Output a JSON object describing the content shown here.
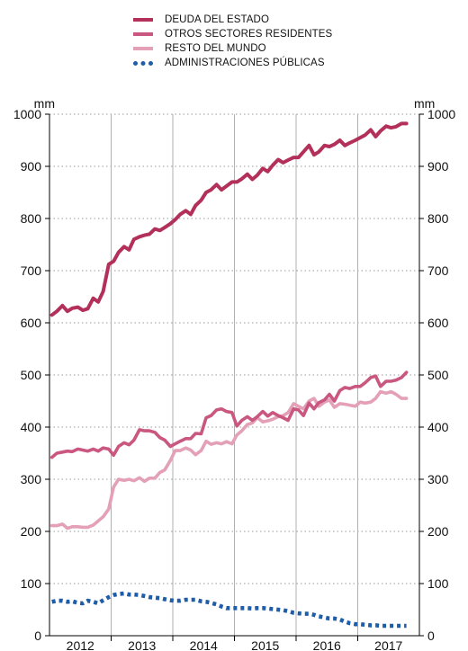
{
  "chart_data": {
    "type": "line",
    "title": "",
    "xlabel": "",
    "ylabel": "mm",
    "y2label": "mm",
    "ylim": [
      0,
      1000
    ],
    "yticks": [
      0,
      100,
      200,
      300,
      400,
      500,
      600,
      700,
      800,
      900,
      1000
    ],
    "x_range": [
      2011.58,
      2017.58
    ],
    "year_labels": [
      "2012",
      "2013",
      "2014",
      "2015",
      "2016",
      "2017"
    ],
    "year_label_positions": [
      2012.08,
      2013.08,
      2014.08,
      2015.08,
      2016.08,
      2017.08
    ],
    "year_boundaries": [
      2012.58,
      2013.58,
      2014.58,
      2015.58,
      2016.58
    ],
    "grid": "horizontal dotted, vertical year lines",
    "legend_position": "top",
    "x": [
      2011.62,
      2011.7,
      2011.79,
      2011.87,
      2011.95,
      2012.04,
      2012.12,
      2012.2,
      2012.29,
      2012.37,
      2012.45,
      2012.54,
      2012.62,
      2012.7,
      2012.79,
      2012.87,
      2012.95,
      2013.04,
      2013.12,
      2013.2,
      2013.29,
      2013.37,
      2013.45,
      2013.54,
      2013.62,
      2013.7,
      2013.79,
      2013.87,
      2013.95,
      2014.04,
      2014.12,
      2014.2,
      2014.29,
      2014.37,
      2014.45,
      2014.54,
      2014.62,
      2014.7,
      2014.79,
      2014.87,
      2014.95,
      2015.04,
      2015.12,
      2015.2,
      2015.29,
      2015.37,
      2015.45,
      2015.54,
      2015.62,
      2015.7,
      2015.79,
      2015.87,
      2015.95,
      2016.04,
      2016.12,
      2016.2,
      2016.29,
      2016.37,
      2016.45,
      2016.54,
      2016.62,
      2016.7,
      2016.79,
      2016.87,
      2016.95,
      2017.04,
      2017.12,
      2017.2,
      2017.29,
      2017.37
    ],
    "series": [
      {
        "name": "DEUDA DEL ESTADO",
        "color": "#b3305a",
        "style": "solid",
        "width": 4,
        "values": [
          615,
          622,
          633,
          622,
          628,
          630,
          624,
          627,
          647,
          640,
          660,
          712,
          718,
          735,
          746,
          740,
          760,
          765,
          768,
          770,
          780,
          777,
          783,
          790,
          798,
          808,
          815,
          808,
          825,
          835,
          850,
          855,
          865,
          855,
          862,
          870,
          870,
          876,
          885,
          875,
          883,
          896,
          890,
          902,
          913,
          907,
          912,
          917,
          917,
          928,
          940,
          922,
          928,
          940,
          938,
          942,
          950,
          940,
          945,
          950,
          955,
          960,
          970,
          957,
          968,
          977,
          974,
          976,
          982,
          982
        ]
      },
      {
        "name": "OTROS SECTORES RESIDENTES",
        "color": "#c9577f",
        "style": "solid",
        "width": 3.6,
        "values": [
          342,
          350,
          352,
          354,
          353,
          358,
          356,
          354,
          358,
          354,
          360,
          358,
          346,
          363,
          370,
          366,
          375,
          395,
          393,
          393,
          390,
          380,
          375,
          363,
          368,
          373,
          378,
          378,
          388,
          387,
          418,
          422,
          433,
          435,
          430,
          428,
          402,
          413,
          420,
          413,
          420,
          430,
          421,
          428,
          422,
          418,
          413,
          435,
          433,
          422,
          446,
          435,
          447,
          452,
          463,
          450,
          470,
          476,
          474,
          478,
          478,
          485,
          495,
          498,
          478,
          488,
          488,
          490,
          495,
          505
        ]
      },
      {
        "name": "RESTO DEL MUNDO",
        "color": "#e3a0b6",
        "style": "solid",
        "width": 3.6,
        "values": [
          211,
          211,
          214,
          206,
          209,
          209,
          208,
          208,
          212,
          220,
          228,
          243,
          285,
          300,
          298,
          300,
          297,
          303,
          296,
          302,
          302,
          313,
          318,
          336,
          355,
          355,
          360,
          356,
          347,
          355,
          373,
          367,
          370,
          368,
          372,
          368,
          385,
          393,
          405,
          408,
          418,
          410,
          412,
          415,
          420,
          422,
          428,
          445,
          440,
          435,
          450,
          455,
          440,
          448,
          452,
          438,
          445,
          444,
          442,
          440,
          448,
          446,
          448,
          455,
          468,
          465,
          468,
          463,
          455,
          455
        ]
      },
      {
        "name": "ADMINISTRACIONES PÚBLICAS",
        "color": "#1f5da8",
        "style": "dotted",
        "width": 4.6,
        "values": [
          65,
          67,
          67,
          65,
          66,
          63,
          62,
          67,
          65,
          62,
          68,
          74,
          78,
          80,
          81,
          79,
          79,
          78,
          76,
          74,
          73,
          72,
          70,
          68,
          67,
          67,
          69,
          69,
          69,
          66,
          65,
          63,
          60,
          56,
          53,
          53,
          53,
          53,
          53,
          52,
          53,
          53,
          52,
          51,
          50,
          49,
          47,
          44,
          43,
          42,
          42,
          40,
          37,
          35,
          33,
          33,
          31,
          27,
          24,
          22,
          22,
          21,
          20,
          20,
          19,
          19,
          19,
          19,
          19,
          19
        ]
      }
    ]
  }
}
